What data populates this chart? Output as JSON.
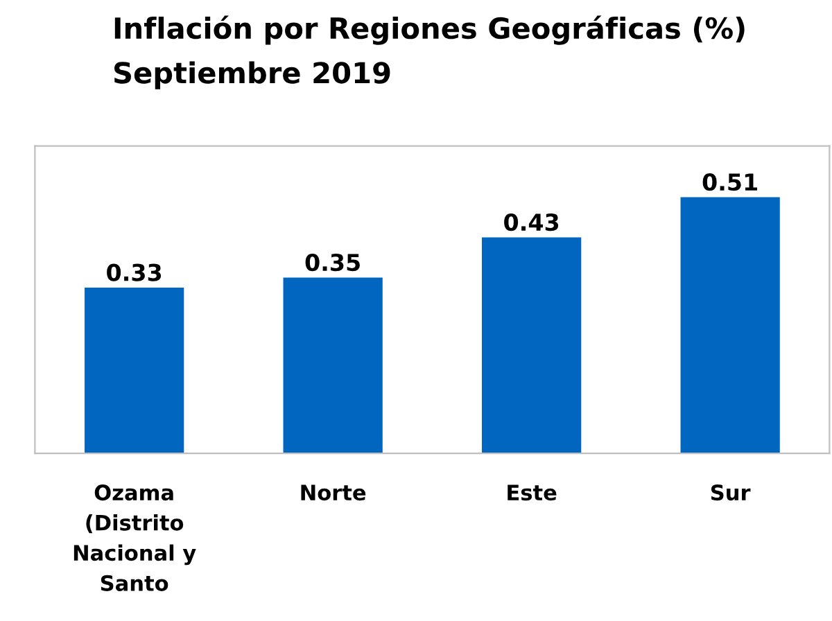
{
  "chart_data": {
    "type": "bar",
    "title": "Inflación por Regiones Geográficas (%)\nSeptiembre 2019",
    "categories": [
      "Ozama (Distrito Nacional y Santo",
      "Norte",
      "Este",
      "Sur"
    ],
    "values": [
      0.33,
      0.35,
      0.43,
      0.51
    ],
    "color": "#0066c0",
    "data_labels": true,
    "grid": false,
    "legend": false
  }
}
